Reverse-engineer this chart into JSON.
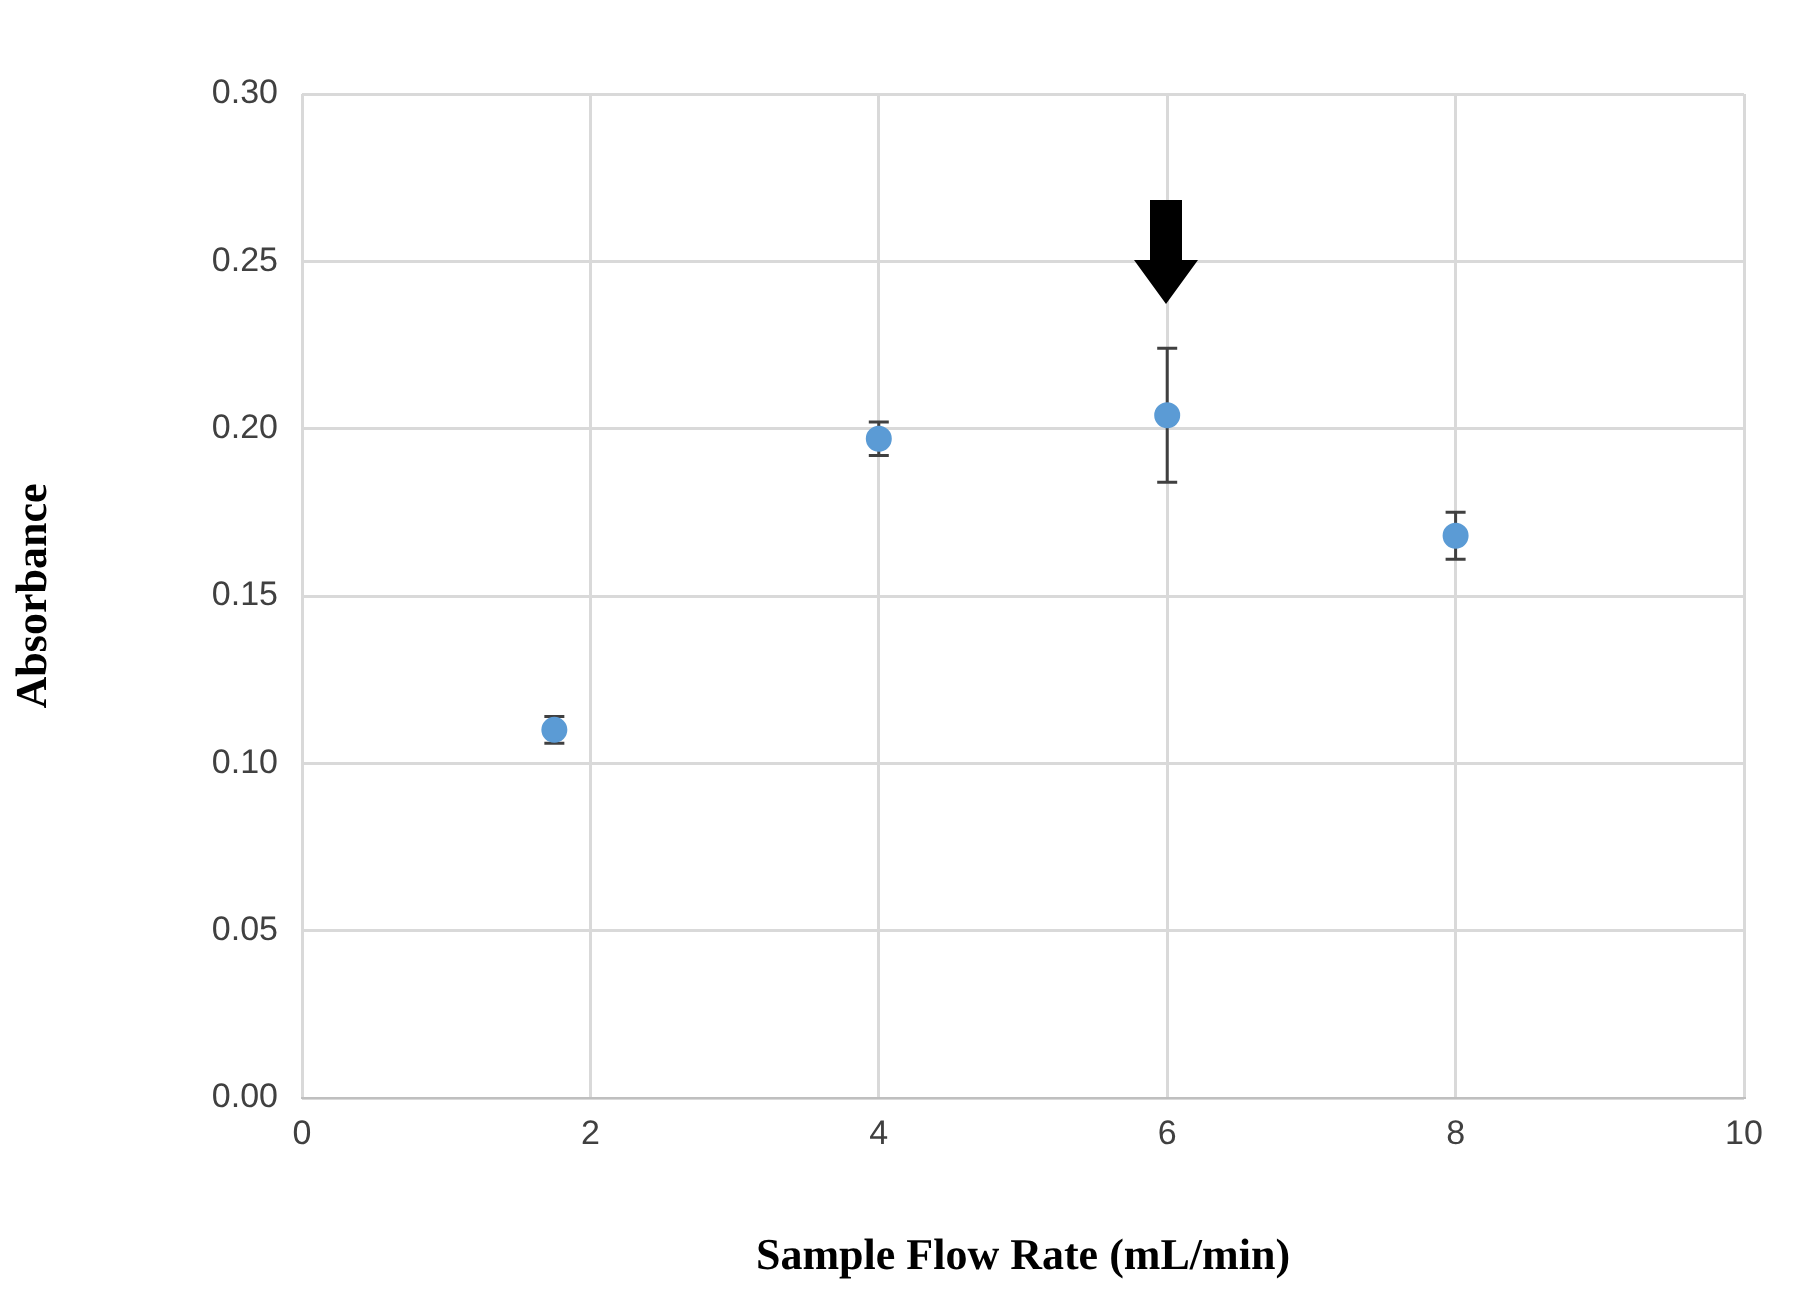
{
  "chart_data": {
    "type": "scatter",
    "xlabel": "Sample Flow Rate (mL/min)",
    "ylabel": "Absorbance",
    "x": [
      1.75,
      4,
      6,
      8
    ],
    "series": [
      {
        "color": "#5b9bd5",
        "values": [
          0.11,
          0.197,
          0.204,
          0.168
        ],
        "errors": [
          0.004,
          0.005,
          0.02,
          0.007
        ]
      }
    ],
    "xlim": [
      0,
      10
    ],
    "xticks": [
      0,
      2,
      4,
      6,
      8,
      10
    ],
    "ylim": [
      0,
      0.3
    ],
    "yticks": [
      {
        "value": 0,
        "label": "0.00"
      },
      {
        "value": 0.05,
        "label": "0.05"
      },
      {
        "value": 0.1,
        "label": "0.10"
      },
      {
        "value": 0.15,
        "label": "0.15"
      },
      {
        "value": 0.2,
        "label": "0.20"
      },
      {
        "value": 0.25,
        "label": "0.25"
      },
      {
        "value": 0.3,
        "label": "0.30"
      }
    ],
    "grid": true,
    "legend": false,
    "marker": "circle"
  }
}
